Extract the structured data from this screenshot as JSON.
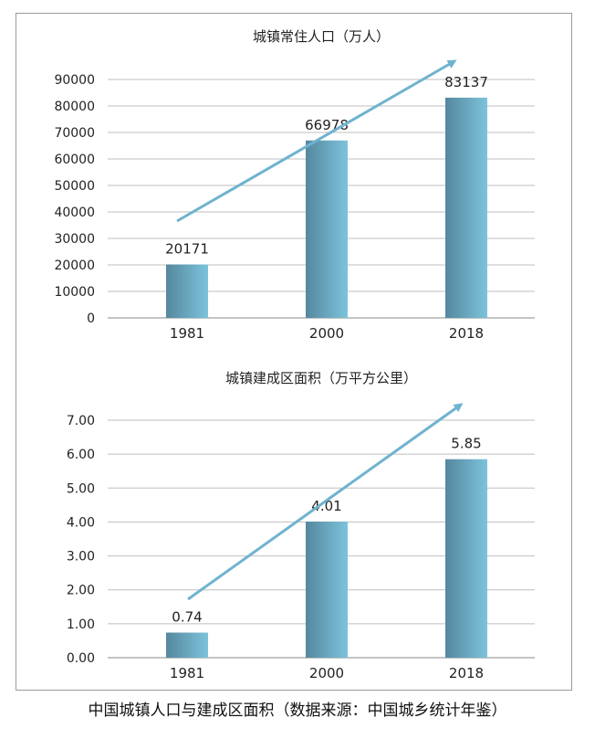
{
  "caption": "中国城镇人口与建成区面积（数据来源：中国城乡统计年鉴）",
  "colors": {
    "bar_dark": "#55889e",
    "bar_light": "#7cc3dc",
    "arrow": "#6fb3cf",
    "grid": "#bfbfbf",
    "axis": "#888888"
  },
  "chart_data": [
    {
      "type": "bar",
      "title": "城镇常住人口（万人）",
      "categories": [
        "1981",
        "2000",
        "2018"
      ],
      "values": [
        20171,
        66978,
        83137
      ],
      "value_labels": [
        "20171",
        "66978",
        "83137"
      ],
      "ylim": [
        0,
        90000
      ],
      "yticks": [
        0,
        10000,
        20000,
        30000,
        40000,
        50000,
        60000,
        70000,
        80000,
        90000
      ],
      "ytick_labels": [
        "0",
        "10000",
        "20000",
        "30000",
        "40000",
        "50000",
        "60000",
        "70000",
        "80000",
        "90000"
      ],
      "grid": true,
      "trend_arrow": true
    },
    {
      "type": "bar",
      "title": "城镇建成区面积（万平方公里）",
      "categories": [
        "1981",
        "2000",
        "2018"
      ],
      "values": [
        0.74,
        4.01,
        5.85
      ],
      "value_labels": [
        "0.74",
        "4.01",
        "5.85"
      ],
      "ylim": [
        0,
        7
      ],
      "yticks": [
        0,
        1,
        2,
        3,
        4,
        5,
        6,
        7
      ],
      "ytick_labels": [
        "0.00",
        "1.00",
        "2.00",
        "3.00",
        "4.00",
        "5.00",
        "6.00",
        "7.00"
      ],
      "grid": true,
      "trend_arrow": true
    }
  ]
}
